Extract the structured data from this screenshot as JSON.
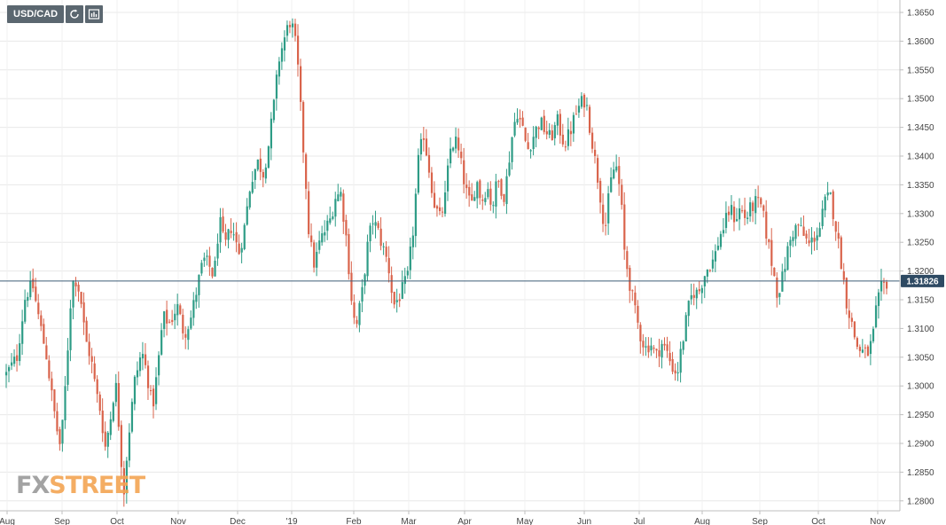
{
  "toolbar": {
    "symbol": "USD/CAD",
    "icons": [
      "refresh-icon",
      "indicators-icon"
    ]
  },
  "logo": {
    "part1": "FX",
    "part2": "STREET"
  },
  "colors": {
    "up": "#2e9c86",
    "down": "#d9634b",
    "grid": "#e8e8e8",
    "price_line": "#3f5d78",
    "price_label_bg": "#2e4a63"
  },
  "chart_data": {
    "type": "candlestick",
    "title": "USD/CAD",
    "xlabel": "",
    "ylabel": "",
    "ylim": [
      1.2775,
      1.3665
    ],
    "y_ticks": [
      "1.2800",
      "1.2850",
      "1.2900",
      "1.2950",
      "1.3000",
      "1.3050",
      "1.3100",
      "1.3150",
      "1.3200",
      "1.3250",
      "1.3300",
      "1.3350",
      "1.3400",
      "1.3450",
      "1.3500",
      "1.3550",
      "1.3600",
      "1.3650"
    ],
    "x_ticks": [
      "Aug",
      "Sep",
      "Oct",
      "Nov",
      "Dec",
      "'19",
      "Feb",
      "Mar",
      "Apr",
      "May",
      "Jun",
      "Jul",
      "Aug",
      "Sep",
      "Oct",
      "Nov"
    ],
    "current_price": "1.31826",
    "grid": true,
    "path": [
      [
        0,
        1.302
      ],
      [
        12,
        1.305
      ],
      [
        22,
        1.316
      ],
      [
        30,
        1.3175
      ],
      [
        38,
        1.311
      ],
      [
        46,
        1.305
      ],
      [
        52,
        1.298
      ],
      [
        58,
        1.292
      ],
      [
        62,
        1.289
      ],
      [
        68,
        1.302
      ],
      [
        74,
        1.317
      ],
      [
        78,
        1.319
      ],
      [
        84,
        1.316
      ],
      [
        90,
        1.308
      ],
      [
        96,
        1.305
      ],
      [
        102,
        1.299
      ],
      [
        108,
        1.295
      ],
      [
        112,
        1.289
      ],
      [
        118,
        1.294
      ],
      [
        124,
        1.301
      ],
      [
        130,
        1.289
      ],
      [
        133,
        1.2805
      ],
      [
        138,
        1.29
      ],
      [
        146,
        1.301
      ],
      [
        154,
        1.306
      ],
      [
        160,
        1.302
      ],
      [
        166,
        1.296
      ],
      [
        172,
        1.303
      ],
      [
        178,
        1.312
      ],
      [
        186,
        1.311
      ],
      [
        194,
        1.314
      ],
      [
        202,
        1.309
      ],
      [
        210,
        1.312
      ],
      [
        218,
        1.318
      ],
      [
        224,
        1.322
      ],
      [
        230,
        1.321
      ],
      [
        236,
        1.319
      ],
      [
        242,
        1.329
      ],
      [
        248,
        1.324
      ],
      [
        256,
        1.328
      ],
      [
        264,
        1.323
      ],
      [
        270,
        1.327
      ],
      [
        278,
        1.336
      ],
      [
        286,
        1.339
      ],
      [
        292,
        1.337
      ],
      [
        298,
        1.342
      ],
      [
        304,
        1.349
      ],
      [
        310,
        1.357
      ],
      [
        316,
        1.3605
      ],
      [
        322,
        1.3635
      ],
      [
        327,
        1.3615
      ],
      [
        332,
        1.354
      ],
      [
        336,
        1.344
      ],
      [
        340,
        1.336
      ],
      [
        344,
        1.326
      ],
      [
        350,
        1.321
      ],
      [
        356,
        1.325
      ],
      [
        362,
        1.327
      ],
      [
        368,
        1.329
      ],
      [
        374,
        1.333
      ],
      [
        380,
        1.3335
      ],
      [
        386,
        1.326
      ],
      [
        390,
        1.319
      ],
      [
        394,
        1.312
      ],
      [
        398,
        1.3105
      ],
      [
        404,
        1.316
      ],
      [
        410,
        1.324
      ],
      [
        416,
        1.329
      ],
      [
        422,
        1.327
      ],
      [
        428,
        1.324
      ],
      [
        434,
        1.321
      ],
      [
        440,
        1.314
      ],
      [
        448,
        1.316
      ],
      [
        456,
        1.319
      ],
      [
        462,
        1.327
      ],
      [
        468,
        1.339
      ],
      [
        474,
        1.344
      ],
      [
        480,
        1.338
      ],
      [
        486,
        1.332
      ],
      [
        492,
        1.329
      ],
      [
        498,
        1.332
      ],
      [
        504,
        1.341
      ],
      [
        510,
        1.343
      ],
      [
        516,
        1.339
      ],
      [
        522,
        1.334
      ],
      [
        528,
        1.331
      ],
      [
        534,
        1.336
      ],
      [
        540,
        1.332
      ],
      [
        546,
        1.335
      ],
      [
        552,
        1.331
      ],
      [
        558,
        1.336
      ],
      [
        566,
        1.333
      ],
      [
        574,
        1.343
      ],
      [
        580,
        1.348
      ],
      [
        586,
        1.345
      ],
      [
        592,
        1.341
      ],
      [
        600,
        1.344
      ],
      [
        606,
        1.346
      ],
      [
        612,
        1.3445
      ],
      [
        618,
        1.343
      ],
      [
        626,
        1.346
      ],
      [
        634,
        1.342
      ],
      [
        640,
        1.344
      ],
      [
        646,
        1.347
      ],
      [
        652,
        1.349
      ],
      [
        658,
        1.35
      ],
      [
        662,
        1.346
      ],
      [
        668,
        1.34
      ],
      [
        674,
        1.334
      ],
      [
        680,
        1.327
      ],
      [
        686,
        1.335
      ],
      [
        692,
        1.339
      ],
      [
        698,
        1.333
      ],
      [
        702,
        1.3235
      ],
      [
        708,
        1.318
      ],
      [
        714,
        1.313
      ],
      [
        720,
        1.309
      ],
      [
        726,
        1.3065
      ],
      [
        732,
        1.3075
      ],
      [
        738,
        1.305
      ],
      [
        744,
        1.3075
      ],
      [
        750,
        1.306
      ],
      [
        756,
        1.3035
      ],
      [
        762,
        1.302
      ],
      [
        768,
        1.3075
      ],
      [
        774,
        1.313
      ],
      [
        780,
        1.3165
      ],
      [
        786,
        1.316
      ],
      [
        792,
        1.319
      ],
      [
        798,
        1.321
      ],
      [
        804,
        1.322
      ],
      [
        810,
        1.326
      ],
      [
        816,
        1.328
      ],
      [
        822,
        1.331
      ],
      [
        828,
        1.329
      ],
      [
        834,
        1.331
      ],
      [
        840,
        1.329
      ],
      [
        846,
        1.331
      ],
      [
        852,
        1.332
      ],
      [
        858,
        1.331
      ],
      [
        864,
        1.326
      ],
      [
        870,
        1.321
      ],
      [
        876,
        1.316
      ],
      [
        882,
        1.319
      ],
      [
        888,
        1.324
      ],
      [
        894,
        1.327
      ],
      [
        900,
        1.328
      ],
      [
        906,
        1.326
      ],
      [
        912,
        1.3245
      ],
      [
        918,
        1.326
      ],
      [
        924,
        1.3275
      ],
      [
        930,
        1.332
      ],
      [
        936,
        1.333
      ],
      [
        942,
        1.328
      ],
      [
        948,
        1.322
      ],
      [
        954,
        1.315
      ],
      [
        960,
        1.311
      ],
      [
        966,
        1.307
      ],
      [
        972,
        1.306
      ],
      [
        978,
        1.3055
      ],
      [
        984,
        1.308
      ],
      [
        988,
        1.313
      ],
      [
        994,
        1.317
      ],
      [
        1000,
        1.318
      ]
    ]
  }
}
